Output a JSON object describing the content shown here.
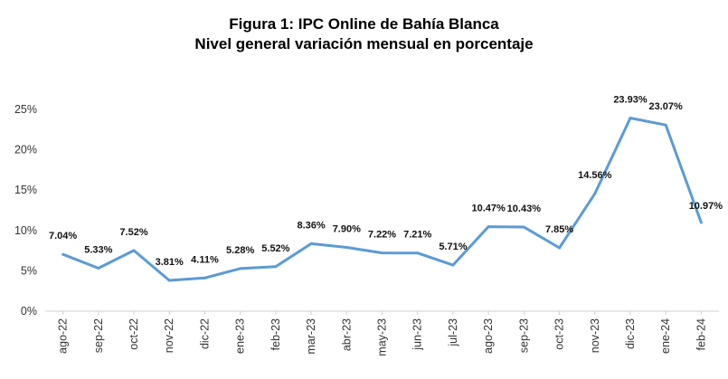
{
  "title": "Figura 1: IPC Online de Bahía Blanca",
  "subtitle": "Nivel general variación mensual en porcentaje",
  "chart_data": {
    "type": "line",
    "title": "Figura 1: IPC Online de Bahía Blanca",
    "subtitle": "Nivel general variación mensual en porcentaje",
    "xlabel": "",
    "ylabel": "",
    "categories": [
      "ago-22",
      "sep-22",
      "oct-22",
      "nov-22",
      "dic-22",
      "ene-23",
      "feb-23",
      "mar-23",
      "abr-23",
      "may-23",
      "jun-23",
      "jul-23",
      "ago-23",
      "sep-23",
      "oct-23",
      "nov-23",
      "dic-23",
      "ene-24",
      "feb-24"
    ],
    "values": [
      7.04,
      5.33,
      7.52,
      3.81,
      4.11,
      5.28,
      5.52,
      8.36,
      7.9,
      7.22,
      7.21,
      5.71,
      10.47,
      10.43,
      7.85,
      14.56,
      23.93,
      23.07,
      10.97
    ],
    "data_labels": [
      "7.04%",
      "5.33%",
      "7.52%",
      "3.81%",
      "4.11%",
      "5.28%",
      "5.52%",
      "8.36%",
      "7.90%",
      "7.22%",
      "7.21%",
      "5.71%",
      "10.47%",
      "10.43%",
      "7.85%",
      "14.56%",
      "23.93%",
      "23.07%",
      "10.97%"
    ],
    "ylim": [
      0,
      25
    ],
    "yticks": [
      0,
      5,
      10,
      15,
      20,
      25
    ],
    "ytick_labels": [
      "0%",
      "5%",
      "10%",
      "15%",
      "20%",
      "25%"
    ],
    "grid": false,
    "legend": "none",
    "line_color": "#5b9bd5"
  }
}
